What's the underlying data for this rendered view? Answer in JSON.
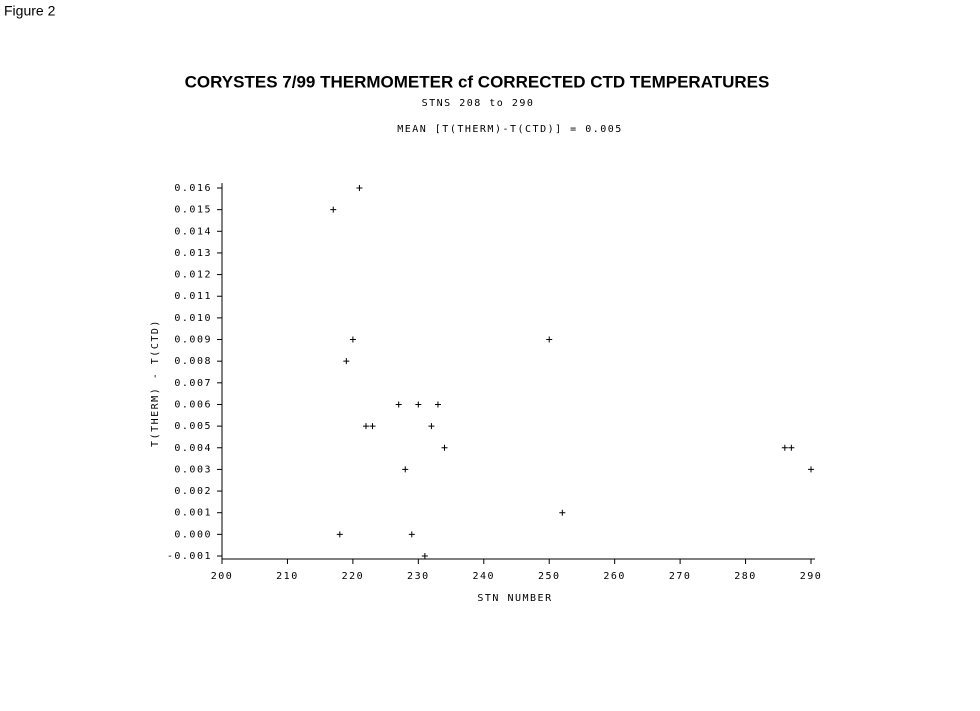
{
  "figure_label": "Figure 2",
  "chart_data": {
    "type": "scatter",
    "title": "CORYSTES 7/99 THERMOMETER cf CORRECTED CTD TEMPERATURES",
    "subtitles": [
      "STNS 208 to 290",
      "MEAN [T(THERM)-T(CTD)] =  0.005"
    ],
    "x_label": "STN NUMBER",
    "y_label": "T(THERM) - T(CTD)",
    "marker": "+",
    "color": "#000000",
    "x": [
      221,
      217,
      220,
      219,
      222,
      223,
      227,
      230,
      233,
      232,
      234,
      228,
      218,
      229,
      231,
      250,
      252,
      286,
      287,
      290
    ],
    "values": [
      0.016,
      0.015,
      0.009,
      0.008,
      0.005,
      0.005,
      0.006,
      0.006,
      0.006,
      0.005,
      0.004,
      0.003,
      0.0,
      0.0,
      -0.001,
      0.009,
      0.001,
      0.004,
      0.004,
      0.003
    ],
    "xlim": [
      200,
      290
    ],
    "xticks": [
      200,
      210,
      220,
      230,
      240,
      250,
      260,
      270,
      280,
      290
    ],
    "ylim": [
      -0.001,
      0.016
    ],
    "yticks": [
      -0.001,
      {
        "value": 0,
        "label": "0.000"
      },
      0.001,
      0.002,
      0.003,
      0.004,
      0.005,
      0.006,
      0.007,
      0.008,
      0.009,
      {
        "value": 0.01,
        "label": "0.010"
      },
      0.011,
      0.012,
      0.013,
      0.014,
      0.015,
      0.016
    ],
    "grid": false
  }
}
